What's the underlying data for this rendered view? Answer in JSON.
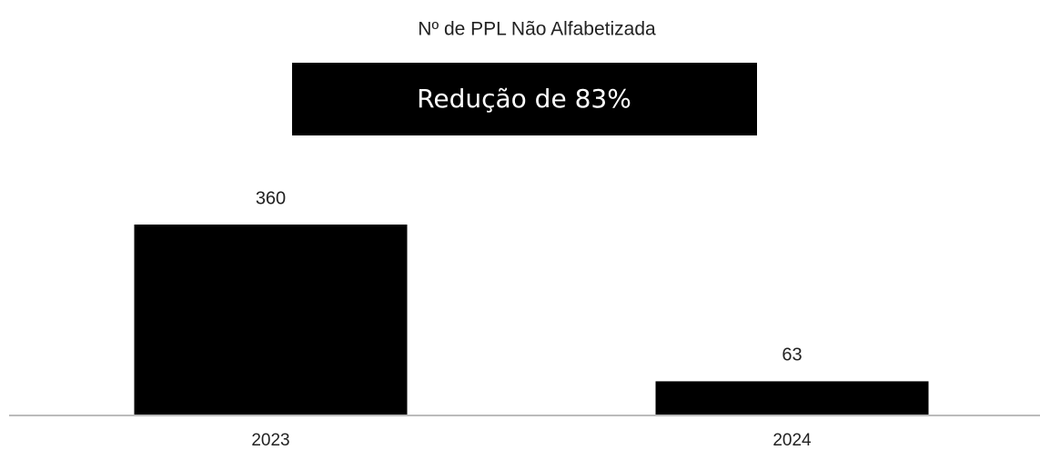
{
  "chart_data": {
    "type": "bar",
    "title": "Nº de PPL Não Alfabetizada",
    "annotations": [
      "Redução de 83%"
    ],
    "categories": [
      "2023",
      "2024"
    ],
    "values": [
      360,
      63
    ],
    "color": "#000000"
  }
}
